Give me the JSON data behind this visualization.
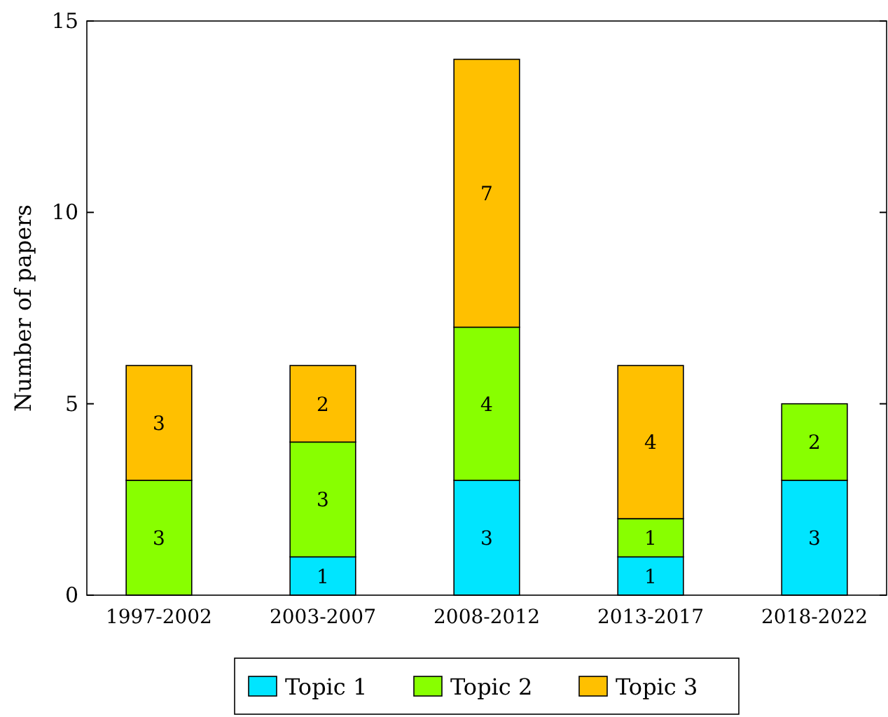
{
  "chart_data": {
    "type": "bar",
    "ylabel": "Number of papers",
    "categories": [
      "1997-2002",
      "2003-2007",
      "2008-2012",
      "2013-2017",
      "2018-2022"
    ],
    "series": [
      {
        "name": "Topic 1",
        "color": "#00e5ff",
        "values": [
          null,
          1,
          3,
          1,
          3
        ]
      },
      {
        "name": "Topic 2",
        "color": "#88ff00",
        "values": [
          3,
          3,
          4,
          1,
          2
        ]
      },
      {
        "name": "Topic 3",
        "color": "#ffc000",
        "values": [
          3,
          2,
          7,
          4,
          null
        ]
      }
    ],
    "stacked": true,
    "data_labels": true,
    "ylim": [
      0,
      15
    ],
    "yticks": [
      0,
      5,
      10,
      15
    ],
    "legend": "bottom",
    "grid": false
  }
}
